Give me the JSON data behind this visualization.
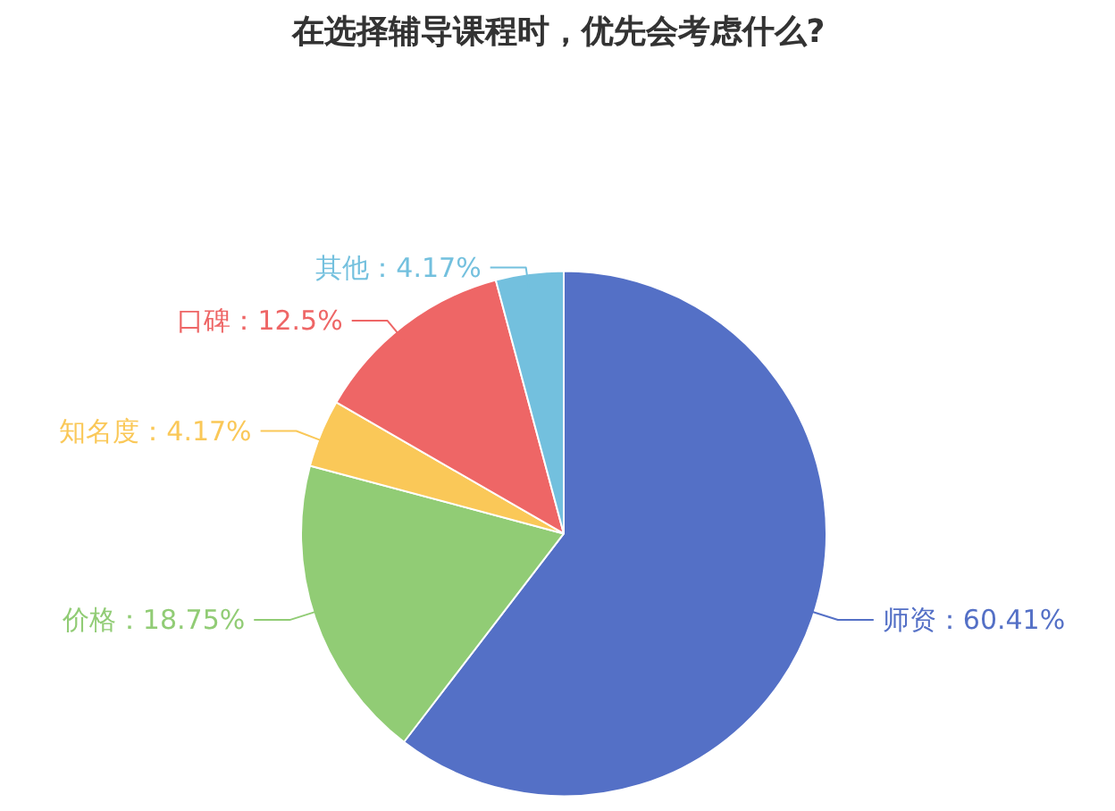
{
  "chart_data": {
    "type": "pie",
    "title": "在选择辅导课程时，优先会考虑什么?",
    "categories": [
      "师资",
      "价格",
      "知名度",
      "口碑",
      "其他"
    ],
    "values": [
      60.41,
      18.75,
      4.17,
      12.5,
      4.17
    ],
    "value_labels": [
      "60.41%",
      "18.75%",
      "4.17%",
      "12.5%",
      "4.17%"
    ],
    "colors": [
      "#5470c6",
      "#91cc75",
      "#fac858",
      "#ee6666",
      "#73c0de"
    ],
    "legend": false
  }
}
